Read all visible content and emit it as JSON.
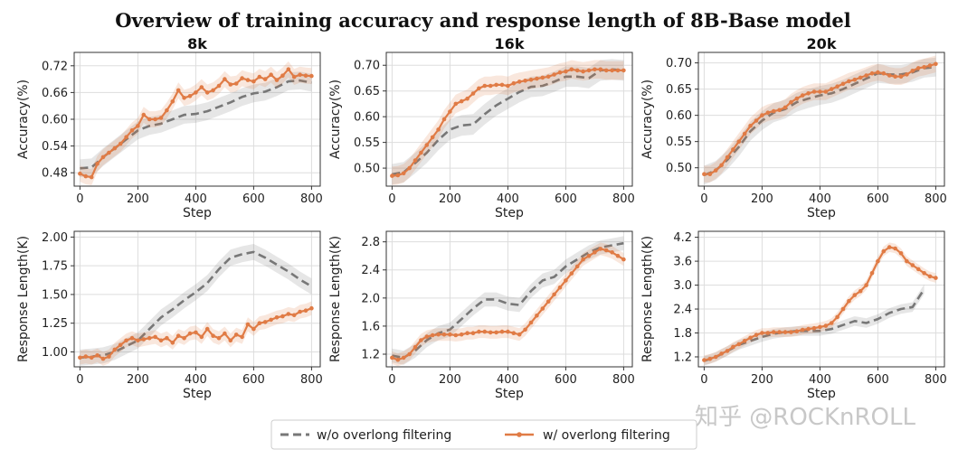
{
  "figure": {
    "title": "Overview of training accuracy and response length of 8B-Base model",
    "watermark": "知乎 @ROCKnROLL",
    "legend": [
      {
        "label": "w/o overlong filtering",
        "color": "#777777",
        "style": "dashed"
      },
      {
        "label": "w/ overlong filtering",
        "color": "#e07b45",
        "style": "solid-marker"
      }
    ],
    "colors": {
      "baseline": "#777777",
      "filtered": "#e07b45",
      "grid": "#dddddd"
    }
  },
  "chart_data": [
    {
      "type": "line",
      "title": "8k",
      "xlabel": "Step",
      "ylabel": "Accuracy(%)",
      "xlim": [
        -20,
        830
      ],
      "ylim": [
        0.45,
        0.75
      ],
      "xticks": [
        0,
        200,
        400,
        600,
        800
      ],
      "yticks": [
        0.48,
        0.54,
        0.6,
        0.66,
        0.72
      ],
      "ytick_labels": [
        "0.48",
        "0.54",
        "0.60",
        "0.66",
        "0.72"
      ],
      "grid": true,
      "series": [
        {
          "name": "w/o overlong filtering",
          "x": [
            0,
            40,
            80,
            120,
            160,
            200,
            240,
            280,
            320,
            360,
            400,
            440,
            480,
            520,
            560,
            600,
            640,
            680,
            720,
            760,
            800
          ],
          "y": [
            0.49,
            0.492,
            0.515,
            0.535,
            0.555,
            0.575,
            0.585,
            0.59,
            0.6,
            0.61,
            0.612,
            0.618,
            0.628,
            0.638,
            0.65,
            0.658,
            0.662,
            0.672,
            0.685,
            0.687,
            0.682
          ],
          "band": 0.02
        },
        {
          "name": "w/ overlong filtering",
          "x": [
            0,
            20,
            40,
            60,
            80,
            100,
            120,
            140,
            160,
            180,
            200,
            220,
            240,
            260,
            280,
            300,
            320,
            340,
            360,
            380,
            400,
            420,
            440,
            460,
            480,
            500,
            520,
            540,
            560,
            580,
            600,
            620,
            640,
            660,
            680,
            700,
            720,
            740,
            760,
            780,
            800
          ],
          "y": [
            0.478,
            0.472,
            0.47,
            0.5,
            0.515,
            0.525,
            0.535,
            0.545,
            0.56,
            0.575,
            0.585,
            0.61,
            0.6,
            0.6,
            0.603,
            0.62,
            0.64,
            0.665,
            0.648,
            0.652,
            0.66,
            0.672,
            0.66,
            0.665,
            0.675,
            0.69,
            0.678,
            0.68,
            0.692,
            0.688,
            0.685,
            0.695,
            0.69,
            0.7,
            0.688,
            0.698,
            0.712,
            0.695,
            0.7,
            0.698,
            0.697
          ],
          "band": 0.018
        }
      ]
    },
    {
      "type": "line",
      "title": "16k",
      "xlabel": "Step",
      "ylabel": "Accuracy(%)",
      "xlim": [
        -20,
        830
      ],
      "ylim": [
        0.465,
        0.725
      ],
      "xticks": [
        0,
        200,
        400,
        600,
        800
      ],
      "yticks": [
        0.5,
        0.55,
        0.6,
        0.65,
        0.7
      ],
      "ytick_labels": [
        "0.50",
        "0.55",
        "0.60",
        "0.65",
        "0.70"
      ],
      "grid": true,
      "series": [
        {
          "name": "w/o overlong filtering",
          "x": [
            0,
            40,
            80,
            120,
            160,
            200,
            240,
            280,
            320,
            360,
            400,
            440,
            480,
            520,
            560,
            600,
            640,
            680,
            720,
            760,
            800
          ],
          "y": [
            0.488,
            0.492,
            0.51,
            0.53,
            0.555,
            0.575,
            0.583,
            0.585,
            0.605,
            0.622,
            0.635,
            0.648,
            0.658,
            0.66,
            0.668,
            0.678,
            0.678,
            0.675,
            0.69,
            0.692,
            0.69
          ],
          "band": 0.02
        },
        {
          "name": "w/ overlong filtering",
          "x": [
            0,
            20,
            40,
            60,
            80,
            100,
            120,
            140,
            160,
            180,
            200,
            220,
            240,
            260,
            280,
            300,
            320,
            340,
            360,
            380,
            400,
            420,
            440,
            460,
            480,
            500,
            520,
            540,
            560,
            580,
            600,
            620,
            640,
            660,
            680,
            700,
            720,
            740,
            760,
            780,
            800
          ],
          "y": [
            0.485,
            0.486,
            0.49,
            0.5,
            0.515,
            0.53,
            0.545,
            0.56,
            0.575,
            0.595,
            0.61,
            0.625,
            0.63,
            0.635,
            0.645,
            0.655,
            0.66,
            0.66,
            0.662,
            0.662,
            0.66,
            0.665,
            0.668,
            0.67,
            0.672,
            0.674,
            0.676,
            0.678,
            0.682,
            0.686,
            0.688,
            0.692,
            0.69,
            0.688,
            0.69,
            0.692,
            0.692,
            0.69,
            0.69,
            0.69,
            0.69
          ],
          "band": 0.018
        }
      ]
    },
    {
      "type": "line",
      "title": "20k",
      "xlabel": "Step",
      "ylabel": "Accuracy(%)",
      "xlim": [
        -20,
        830
      ],
      "ylim": [
        0.465,
        0.72
      ],
      "xticks": [
        0,
        200,
        400,
        600,
        800
      ],
      "yticks": [
        0.5,
        0.55,
        0.6,
        0.65,
        0.7
      ],
      "ytick_labels": [
        "0.50",
        "0.55",
        "0.60",
        "0.65",
        "0.70"
      ],
      "grid": true,
      "series": [
        {
          "name": "w/o overlong filtering",
          "x": [
            0,
            40,
            80,
            120,
            160,
            200,
            240,
            280,
            320,
            360,
            400,
            440,
            480,
            520,
            560,
            600,
            640,
            680,
            720,
            760,
            800
          ],
          "y": [
            0.486,
            0.495,
            0.515,
            0.54,
            0.57,
            0.59,
            0.605,
            0.612,
            0.625,
            0.632,
            0.638,
            0.642,
            0.65,
            0.66,
            0.67,
            0.68,
            0.678,
            0.678,
            0.682,
            0.69,
            0.692
          ],
          "band": 0.018
        },
        {
          "name": "w/ overlong filtering",
          "x": [
            0,
            20,
            40,
            60,
            80,
            100,
            120,
            140,
            160,
            180,
            200,
            220,
            240,
            260,
            280,
            300,
            320,
            340,
            360,
            380,
            400,
            420,
            440,
            460,
            480,
            500,
            520,
            540,
            560,
            580,
            600,
            620,
            640,
            660,
            680,
            700,
            720,
            740,
            760,
            780,
            800
          ],
          "y": [
            0.488,
            0.488,
            0.495,
            0.505,
            0.52,
            0.535,
            0.55,
            0.565,
            0.58,
            0.59,
            0.6,
            0.605,
            0.608,
            0.61,
            0.615,
            0.625,
            0.632,
            0.638,
            0.642,
            0.645,
            0.645,
            0.645,
            0.65,
            0.655,
            0.66,
            0.665,
            0.668,
            0.672,
            0.676,
            0.68,
            0.682,
            0.68,
            0.676,
            0.674,
            0.674,
            0.678,
            0.685,
            0.69,
            0.692,
            0.695,
            0.698
          ],
          "band": 0.016
        }
      ]
    },
    {
      "type": "line",
      "xlabel": "Step",
      "ylabel": "Response Length(K)",
      "xlim": [
        -20,
        830
      ],
      "ylim": [
        0.87,
        2.05
      ],
      "xticks": [
        0,
        200,
        400,
        600,
        800
      ],
      "yticks": [
        1.0,
        1.25,
        1.5,
        1.75,
        2.0
      ],
      "ytick_labels": [
        "1.00",
        "1.25",
        "1.50",
        "1.75",
        "2.00"
      ],
      "grid": true,
      "series": [
        {
          "name": "w/o overlong filtering",
          "x": [
            0,
            40,
            80,
            120,
            160,
            200,
            240,
            280,
            320,
            360,
            400,
            440,
            480,
            520,
            560,
            600,
            640,
            680,
            720,
            760,
            800
          ],
          "y": [
            0.95,
            0.96,
            0.97,
            1.0,
            1.05,
            1.1,
            1.2,
            1.3,
            1.37,
            1.45,
            1.52,
            1.6,
            1.72,
            1.82,
            1.85,
            1.87,
            1.82,
            1.76,
            1.7,
            1.63,
            1.57
          ],
          "band": 0.07
        },
        {
          "name": "w/ overlong filtering",
          "x": [
            0,
            20,
            40,
            60,
            80,
            100,
            120,
            140,
            160,
            180,
            200,
            220,
            240,
            260,
            280,
            300,
            320,
            340,
            360,
            380,
            400,
            420,
            440,
            460,
            480,
            500,
            520,
            540,
            560,
            580,
            600,
            620,
            640,
            660,
            680,
            700,
            720,
            740,
            760,
            780,
            800
          ],
          "y": [
            0.95,
            0.96,
            0.95,
            0.97,
            0.94,
            0.96,
            1.02,
            1.06,
            1.1,
            1.12,
            1.1,
            1.11,
            1.12,
            1.13,
            1.1,
            1.12,
            1.08,
            1.14,
            1.12,
            1.16,
            1.17,
            1.13,
            1.2,
            1.14,
            1.12,
            1.16,
            1.1,
            1.15,
            1.13,
            1.24,
            1.2,
            1.25,
            1.26,
            1.28,
            1.3,
            1.31,
            1.33,
            1.32,
            1.35,
            1.36,
            1.38
          ],
          "band": 0.06
        }
      ]
    },
    {
      "type": "line",
      "xlabel": "Step",
      "ylabel": "Response Length(K)",
      "xlim": [
        -20,
        830
      ],
      "ylim": [
        1.02,
        2.95
      ],
      "xticks": [
        0,
        200,
        400,
        600,
        800
      ],
      "yticks": [
        1.2,
        1.6,
        2.0,
        2.4,
        2.8
      ],
      "ytick_labels": [
        "1.2",
        "1.6",
        "2.0",
        "2.4",
        "2.8"
      ],
      "grid": true,
      "series": [
        {
          "name": "w/o overlong filtering",
          "x": [
            0,
            40,
            80,
            120,
            160,
            200,
            240,
            280,
            320,
            360,
            400,
            440,
            480,
            520,
            560,
            600,
            640,
            680,
            720,
            760,
            800
          ],
          "y": [
            1.18,
            1.15,
            1.25,
            1.4,
            1.5,
            1.55,
            1.7,
            1.85,
            1.98,
            1.98,
            1.92,
            1.9,
            2.1,
            2.25,
            2.3,
            2.45,
            2.55,
            2.65,
            2.72,
            2.75,
            2.78
          ],
          "band": 0.1
        },
        {
          "name": "w/ overlong filtering",
          "x": [
            0,
            20,
            40,
            60,
            80,
            100,
            120,
            140,
            160,
            180,
            200,
            220,
            240,
            260,
            280,
            300,
            320,
            340,
            360,
            380,
            400,
            420,
            440,
            460,
            480,
            500,
            520,
            540,
            560,
            580,
            600,
            620,
            640,
            660,
            680,
            700,
            720,
            740,
            760,
            780,
            800
          ],
          "y": [
            1.15,
            1.12,
            1.15,
            1.2,
            1.3,
            1.4,
            1.45,
            1.47,
            1.48,
            1.48,
            1.48,
            1.47,
            1.48,
            1.5,
            1.5,
            1.52,
            1.52,
            1.51,
            1.51,
            1.52,
            1.52,
            1.5,
            1.48,
            1.55,
            1.65,
            1.75,
            1.85,
            1.95,
            2.05,
            2.15,
            2.25,
            2.35,
            2.45,
            2.55,
            2.6,
            2.65,
            2.7,
            2.68,
            2.65,
            2.6,
            2.55
          ],
          "band": 0.09
        }
      ]
    },
    {
      "type": "line",
      "xlabel": "Step",
      "ylabel": "Response Length(K)",
      "xlim": [
        -20,
        830
      ],
      "ylim": [
        0.95,
        4.35
      ],
      "xticks": [
        0,
        200,
        400,
        600,
        800
      ],
      "yticks": [
        1.2,
        1.8,
        2.4,
        3.0,
        3.6,
        4.2
      ],
      "ytick_labels": [
        "1.2",
        "1.8",
        "2.4",
        "3.0",
        "3.6",
        "4.2"
      ],
      "grid": true,
      "series": [
        {
          "name": "w/o overlong filtering",
          "x": [
            0,
            40,
            80,
            120,
            160,
            200,
            240,
            280,
            320,
            360,
            400,
            440,
            480,
            520,
            560,
            600,
            640,
            680,
            720,
            760
          ],
          "y": [
            1.1,
            1.2,
            1.35,
            1.5,
            1.6,
            1.7,
            1.78,
            1.82,
            1.85,
            1.85,
            1.85,
            1.9,
            2.0,
            2.1,
            2.05,
            2.15,
            2.3,
            2.4,
            2.45,
            2.9
          ],
          "band": 0.12
        },
        {
          "name": "w/ overlong filtering",
          "x": [
            0,
            20,
            40,
            60,
            80,
            100,
            120,
            140,
            160,
            180,
            200,
            220,
            240,
            260,
            280,
            300,
            320,
            340,
            360,
            380,
            400,
            420,
            440,
            460,
            480,
            500,
            520,
            540,
            560,
            580,
            600,
            620,
            640,
            660,
            680,
            700,
            720,
            740,
            760,
            780,
            800
          ],
          "y": [
            1.12,
            1.15,
            1.2,
            1.28,
            1.35,
            1.45,
            1.52,
            1.6,
            1.68,
            1.75,
            1.8,
            1.8,
            1.82,
            1.82,
            1.82,
            1.82,
            1.84,
            1.88,
            1.9,
            1.92,
            1.95,
            1.98,
            2.05,
            2.2,
            2.4,
            2.6,
            2.75,
            2.85,
            3.0,
            3.3,
            3.6,
            3.85,
            3.95,
            3.92,
            3.8,
            3.6,
            3.5,
            3.4,
            3.3,
            3.22,
            3.18
          ],
          "band": 0.12
        }
      ]
    }
  ]
}
